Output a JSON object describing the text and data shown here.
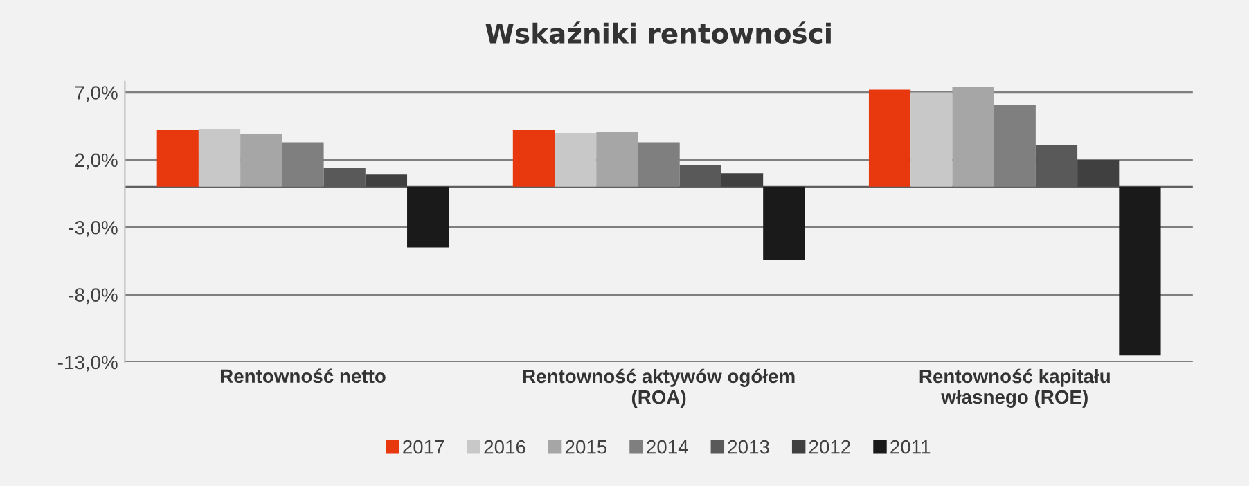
{
  "chart_data": {
    "type": "bar",
    "title": "Wskaźniki rentowności",
    "categories": [
      "Rentowność netto",
      "Rentowność aktywów ogółem\n(ROA)",
      "Rentowność kapitału\nwłasnego (ROE)"
    ],
    "series": [
      {
        "name": "2017",
        "color": "#e8380d",
        "values": [
          4.2,
          4.2,
          7.2
        ]
      },
      {
        "name": "2016",
        "color": "#c8c8c8",
        "values": [
          4.3,
          4.0,
          7.0
        ]
      },
      {
        "name": "2015",
        "color": "#a6a6a6",
        "values": [
          3.9,
          4.1,
          7.4
        ]
      },
      {
        "name": "2014",
        "color": "#7f7f7f",
        "values": [
          3.3,
          3.3,
          6.1
        ]
      },
      {
        "name": "2013",
        "color": "#595959",
        "values": [
          1.4,
          1.6,
          3.1
        ]
      },
      {
        "name": "2012",
        "color": "#404040",
        "values": [
          0.9,
          1.0,
          2.0
        ]
      },
      {
        "name": "2011",
        "color": "#1a1a1a",
        "values": [
          -4.5,
          -5.4,
          -12.5
        ]
      }
    ],
    "ylim": [
      -13,
      7.8
    ],
    "yticks": [
      {
        "value": 7,
        "label": "7,0%"
      },
      {
        "value": 2,
        "label": "2,0%"
      },
      {
        "value": -3,
        "label": "-3,0%"
      },
      {
        "value": -8,
        "label": "-8,0%"
      },
      {
        "value": -13,
        "label": "-13,0%"
      }
    ],
    "grid": "y",
    "legend": "bottom"
  }
}
